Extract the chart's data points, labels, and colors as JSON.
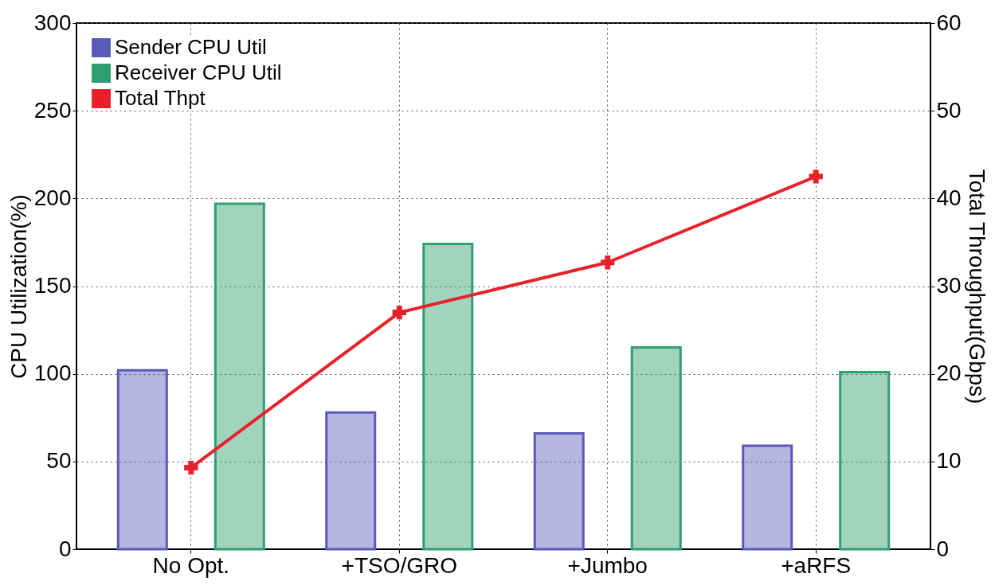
{
  "chart_data": {
    "type": "bar",
    "ylabel": "CPU Utilization(%)",
    "y2label": "Total Throughput(Gbps)",
    "categories": [
      "No Opt.",
      "+TSO/GRO",
      "+Jumbo",
      "+aRFS"
    ],
    "series": [
      {
        "name": "Sender CPU Util",
        "color": "#5a5ab8",
        "values": [
          102,
          78,
          66,
          59
        ]
      },
      {
        "name": "Receiver CPU Util",
        "color": "#2f9e72",
        "values": [
          197,
          174,
          115,
          101
        ]
      },
      {
        "name": "Total Thpt",
        "color": "#e8202a",
        "type": "line",
        "axis": "y2",
        "marker": "cross",
        "values": [
          9.3,
          27.0,
          32.7,
          42.5
        ]
      }
    ],
    "ylim": [
      0,
      300
    ],
    "yticks": [
      0,
      50,
      100,
      150,
      200,
      250,
      300
    ],
    "y2lim": [
      0,
      60
    ],
    "y2ticks": [
      0,
      10,
      20,
      30,
      40,
      50,
      60
    ],
    "grid": true,
    "legend": "top left"
  }
}
